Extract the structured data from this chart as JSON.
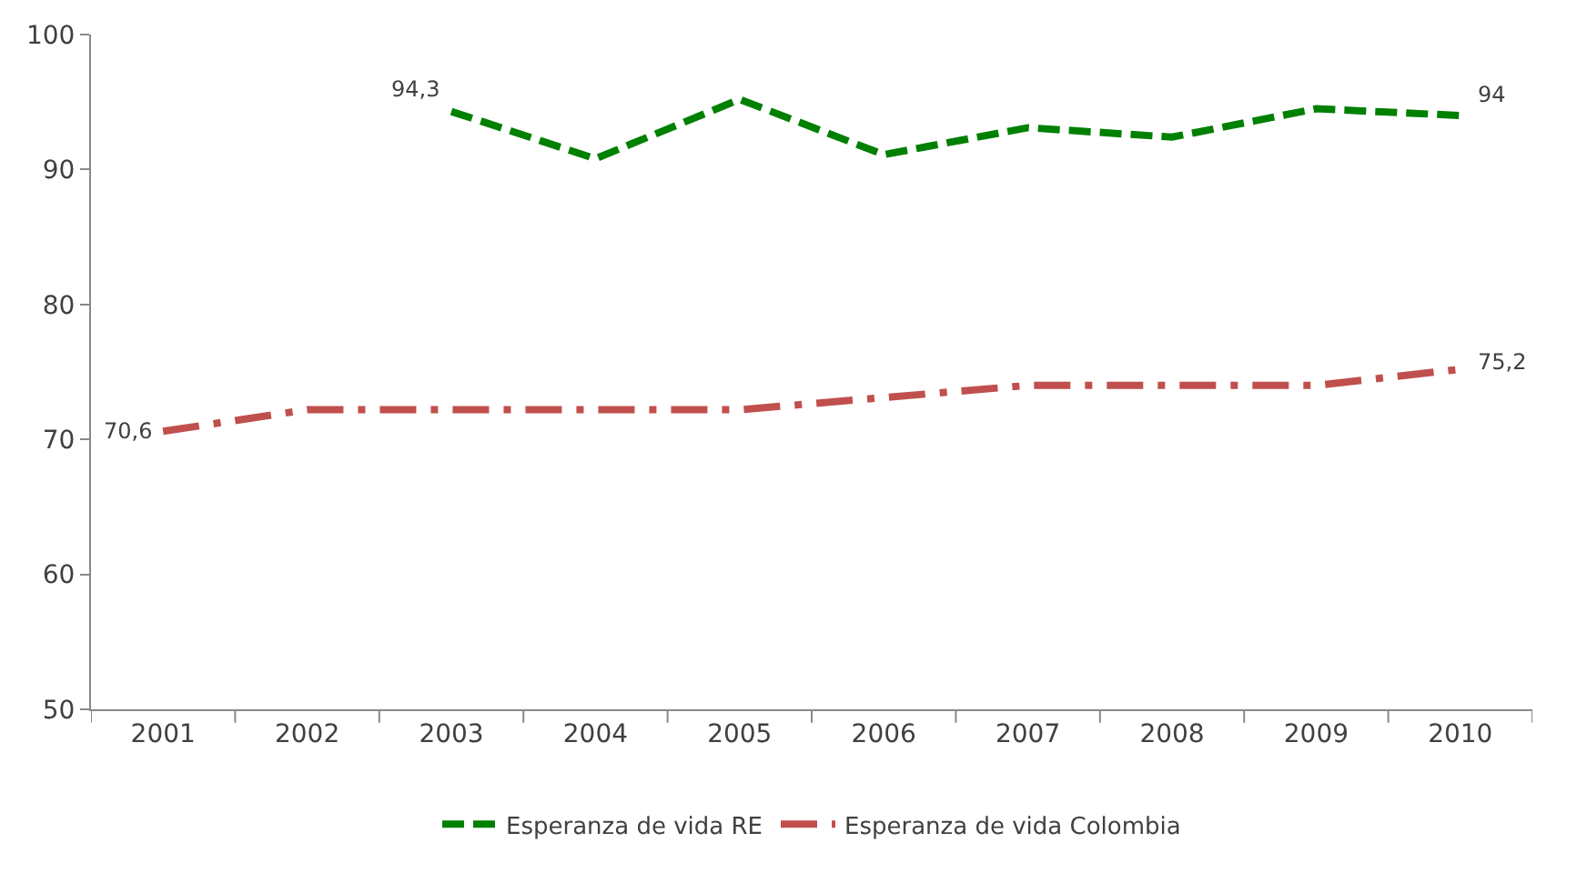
{
  "chart_data": {
    "type": "line",
    "categories": [
      "2001",
      "2002",
      "2003",
      "2004",
      "2005",
      "2006",
      "2007",
      "2008",
      "2009",
      "2010"
    ],
    "series": [
      {
        "name": "Esperanza de vida RE",
        "color": "#008000",
        "line_style": "dashed",
        "values": [
          null,
          null,
          94.3,
          90.8,
          95.2,
          91.1,
          93.1,
          92.4,
          94.5,
          94
        ],
        "value_labels": [
          null,
          null,
          "94,3",
          null,
          null,
          null,
          null,
          null,
          null,
          "94"
        ]
      },
      {
        "name": "Esperanza de vida Colombia",
        "color": "#c0504d",
        "line_style": "dashdot",
        "values": [
          70.6,
          72.2,
          72.2,
          72.2,
          72.2,
          73.1,
          74,
          74,
          74,
          75.2
        ],
        "value_labels": [
          "70,6",
          null,
          null,
          null,
          null,
          null,
          null,
          null,
          null,
          "75,2"
        ]
      }
    ],
    "ylim": [
      50,
      100
    ],
    "yticks": [
      50,
      60,
      70,
      80,
      90,
      100
    ],
    "legend": "bottom",
    "marker": "none"
  }
}
